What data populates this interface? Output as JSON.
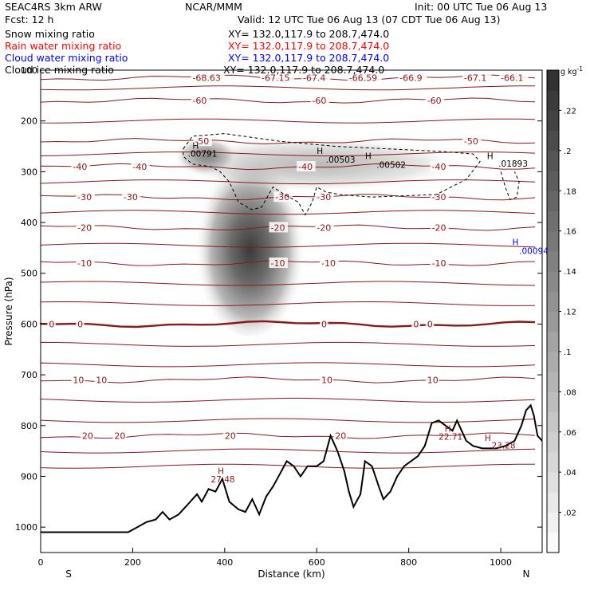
{
  "header": {
    "model": "SEAC4RS  3km ARW",
    "org": "NCAR/MMM",
    "init": "Init: 00 UTC Tue 06 Aug 13",
    "fcst": "Fcst:   12 h",
    "valid": "Valid: 12 UTC Tue 06 Aug 13 (07 CDT Tue 06 Aug 13)"
  },
  "fields": [
    {
      "name": "Snow mixing ratio",
      "xy": "XY= 132.0,117.9 to 208.7,474.0",
      "color": "#000000"
    },
    {
      "name": "Rain water mixing ratio",
      "xy": "XY= 132.0,117.9 to 208.7,474.0",
      "color": "#ff0000"
    },
    {
      "name": "Cloud water mixing ratio",
      "xy": "XY= 132.0,117.9 to 208.7,474.0",
      "color": "#0000ff"
    },
    {
      "name": "Cloud ice mixing ratio",
      "xy": "XY= 132.0,117.9 to 208.7,474.0",
      "color": "#000000"
    }
  ],
  "chart_data": {
    "type": "heatmap",
    "xlabel": "Distance (km)",
    "ylabel": "Pressure (hPa)",
    "xlim": [
      0,
      1090
    ],
    "ylim": [
      1050,
      100
    ],
    "xticks": [
      0,
      200,
      400,
      600,
      800,
      1000
    ],
    "yticks": [
      100,
      200,
      300,
      400,
      500,
      600,
      700,
      800,
      900,
      1000
    ],
    "x_end_labels": {
      "left": "S",
      "right": "N"
    },
    "colorbar": {
      "units": "g kg",
      "units_exp": "-1",
      "ticks": [
        ".02",
        ".04",
        ".06",
        ".08",
        ".1",
        ".12",
        ".14",
        ".16",
        ".18",
        ".2",
        ".22"
      ],
      "range": [
        0,
        0.24
      ]
    },
    "snow_core": {
      "center_x": 455,
      "center_p": 420,
      "max": 0.24
    },
    "temperature_contours": {
      "color": "#8b1a1a",
      "levels": [
        {
          "p": 115,
          "labels": [
            {
              "x": 330,
              "t": "-68.63"
            },
            {
              "x": 480,
              "t": "-67.15"
            },
            {
              "x": 570,
              "t": "-67.4"
            },
            {
              "x": 670,
              "t": "-66.59"
            },
            {
              "x": 780,
              "t": "-66.9"
            },
            {
              "x": 920,
              "t": "-67.1"
            },
            {
              "x": 1000,
              "t": "-66.1"
            }
          ]
        },
        {
          "p": 160,
          "labels": [
            {
              "x": 330,
              "t": "-60"
            },
            {
              "x": 590,
              "t": "-60"
            },
            {
              "x": 840,
              "t": "-60"
            }
          ]
        },
        {
          "p": 240,
          "labels": [
            {
              "x": 335,
              "t": "-50"
            },
            {
              "x": 920,
              "t": "-50"
            }
          ]
        },
        {
          "p": 290,
          "labels": [
            {
              "x": 70,
              "t": "-40"
            },
            {
              "x": 200,
              "t": "-40"
            },
            {
              "x": 560,
              "t": "-40"
            },
            {
              "x": 850,
              "t": "-40"
            }
          ]
        },
        {
          "p": 350,
          "labels": [
            {
              "x": 80,
              "t": "-30"
            },
            {
              "x": 180,
              "t": "-30"
            },
            {
              "x": 510,
              "t": "-30"
            },
            {
              "x": 600,
              "t": "-30"
            },
            {
              "x": 850,
              "t": "-30"
            }
          ]
        },
        {
          "p": 410,
          "labels": [
            {
              "x": 80,
              "t": "-20"
            },
            {
              "x": 500,
              "t": "-20"
            },
            {
              "x": 600,
              "t": "-20"
            },
            {
              "x": 850,
              "t": "-20"
            }
          ]
        },
        {
          "p": 480,
          "labels": [
            {
              "x": 80,
              "t": "-10"
            },
            {
              "x": 500,
              "t": "-10"
            },
            {
              "x": 610,
              "t": "-10"
            },
            {
              "x": 850,
              "t": "-10"
            }
          ]
        },
        {
          "p": 600,
          "labels": [
            {
              "x": 18,
              "t": "0"
            },
            {
              "x": 80,
              "t": "0"
            },
            {
              "x": 610,
              "t": "0"
            },
            {
              "x": 810,
              "t": "0"
            },
            {
              "x": 840,
              "t": "0"
            }
          ]
        },
        {
          "p": 710,
          "labels": [
            {
              "x": 70,
              "t": "10"
            },
            {
              "x": 120,
              "t": "10"
            },
            {
              "x": 610,
              "t": "10"
            },
            {
              "x": 840,
              "t": "10"
            }
          ]
        },
        {
          "p": 820,
          "labels": [
            {
              "x": 90,
              "t": "20"
            },
            {
              "x": 160,
              "t": "20"
            },
            {
              "x": 400,
              "t": "20"
            },
            {
              "x": 640,
              "t": "20"
            }
          ]
        }
      ]
    },
    "extrema_labels": [
      {
        "x": 330,
        "p": 255,
        "t": "H",
        "color": "#000000"
      },
      {
        "x": 320,
        "p": 270,
        "t": ".00791",
        "color": "#000000"
      },
      {
        "x": 600,
        "p": 265,
        "t": "H",
        "color": "#000000"
      },
      {
        "x": 620,
        "p": 282,
        "t": ".00503",
        "color": "#000000"
      },
      {
        "x": 705,
        "p": 275,
        "t": "H",
        "color": "#000000"
      },
      {
        "x": 730,
        "p": 292,
        "t": ".00502",
        "color": "#000000"
      },
      {
        "x": 970,
        "p": 275,
        "t": "H",
        "color": "#000000"
      },
      {
        "x": 995,
        "p": 290,
        "t": ".01893",
        "color": "#000000"
      },
      {
        "x": 1025,
        "p": 445,
        "t": "H",
        "color": "#0000ff"
      },
      {
        "x": 1040,
        "p": 462,
        "t": ".000945",
        "color": "#0000ff"
      },
      {
        "x": 385,
        "p": 895,
        "t": "H",
        "color": "#8b1a1a"
      },
      {
        "x": 370,
        "p": 912,
        "t": "27.48",
        "color": "#8b1a1a"
      },
      {
        "x": 878,
        "p": 812,
        "t": "H",
        "color": "#8b1a1a"
      },
      {
        "x": 865,
        "p": 828,
        "t": "22.71",
        "color": "#8b1a1a"
      },
      {
        "x": 965,
        "p": 830,
        "t": "H",
        "color": "#8b1a1a"
      },
      {
        "x": 980,
        "p": 845,
        "t": "23.28",
        "color": "#8b1a1a"
      }
    ],
    "terrain": [
      [
        0,
        1010
      ],
      [
        190,
        1010
      ],
      [
        210,
        1000
      ],
      [
        230,
        990
      ],
      [
        250,
        985
      ],
      [
        265,
        970
      ],
      [
        280,
        985
      ],
      [
        300,
        975
      ],
      [
        320,
        955
      ],
      [
        340,
        935
      ],
      [
        350,
        950
      ],
      [
        365,
        925
      ],
      [
        380,
        930
      ],
      [
        395,
        905
      ],
      [
        410,
        950
      ],
      [
        430,
        965
      ],
      [
        445,
        970
      ],
      [
        460,
        945
      ],
      [
        475,
        975
      ],
      [
        490,
        940
      ],
      [
        505,
        920
      ],
      [
        520,
        895
      ],
      [
        535,
        870
      ],
      [
        550,
        880
      ],
      [
        565,
        900
      ],
      [
        580,
        880
      ],
      [
        600,
        880
      ],
      [
        615,
        870
      ],
      [
        630,
        820
      ],
      [
        645,
        850
      ],
      [
        660,
        890
      ],
      [
        670,
        930
      ],
      [
        680,
        960
      ],
      [
        695,
        935
      ],
      [
        705,
        870
      ],
      [
        720,
        880
      ],
      [
        735,
        920
      ],
      [
        745,
        945
      ],
      [
        760,
        930
      ],
      [
        775,
        900
      ],
      [
        790,
        880
      ],
      [
        805,
        870
      ],
      [
        820,
        860
      ],
      [
        835,
        840
      ],
      [
        850,
        795
      ],
      [
        865,
        790
      ],
      [
        880,
        800
      ],
      [
        895,
        810
      ],
      [
        905,
        790
      ],
      [
        915,
        810
      ],
      [
        925,
        830
      ],
      [
        940,
        840
      ],
      [
        960,
        845
      ],
      [
        990,
        845
      ],
      [
        1010,
        840
      ],
      [
        1030,
        830
      ],
      [
        1045,
        800
      ],
      [
        1055,
        770
      ],
      [
        1065,
        760
      ],
      [
        1072,
        780
      ],
      [
        1080,
        820
      ],
      [
        1090,
        830
      ]
    ]
  }
}
